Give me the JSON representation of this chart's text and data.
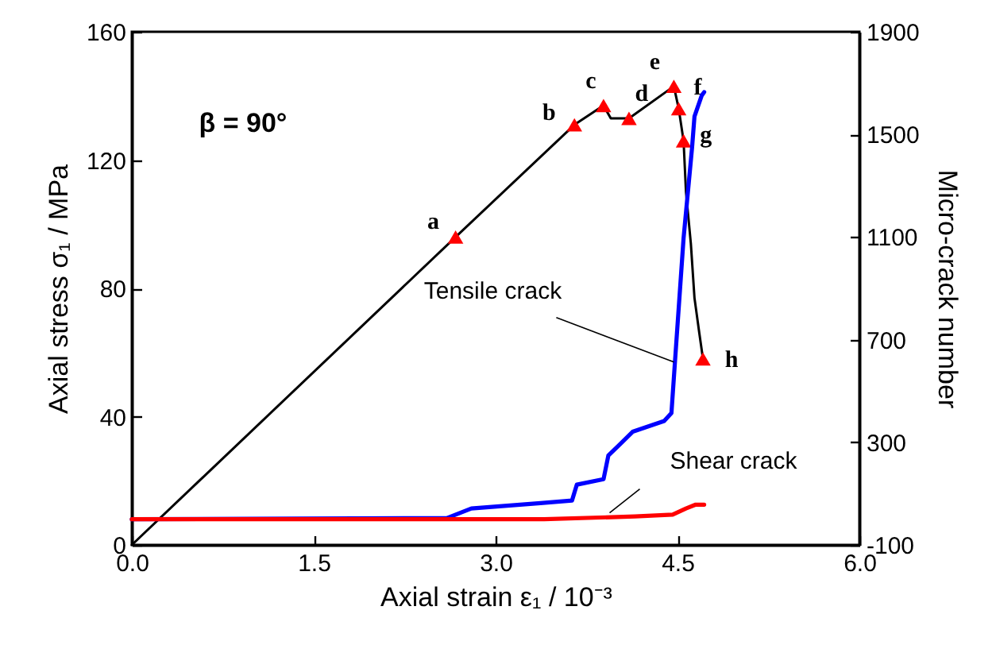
{
  "chart_data": {
    "type": "line",
    "xlabel": "Axial strain ε₁ / 10⁻³",
    "ylabel": "Axial stress σ₁ / MPa",
    "y2label": "Micro-crack number",
    "xlim": [
      0,
      6
    ],
    "xticks": [
      {
        "value": 0,
        "label": "0.0"
      },
      {
        "value": 1.5,
        "label": "1.5"
      },
      {
        "value": 3,
        "label": "3.0"
      },
      {
        "value": 4.5,
        "label": "4.5"
      },
      {
        "value": 6,
        "label": "6.0"
      }
    ],
    "ylim": [
      0,
      160
    ],
    "yticks": [
      0,
      40,
      80,
      120,
      160
    ],
    "y2lim": [
      -100,
      1900
    ],
    "y2ticks": [
      -100,
      300,
      700,
      1100,
      1500,
      1900
    ],
    "series": [
      {
        "color": "#000000",
        "axis": "y",
        "x": [
          0,
          2.67,
          3.65,
          3.89,
          3.95,
          4.02,
          4.1,
          4.47,
          4.51,
          4.55,
          4.57,
          4.61,
          4.64,
          4.68,
          4.71
        ],
        "values": [
          0,
          96,
          131,
          137,
          133,
          133,
          133,
          143,
          136,
          126,
          110,
          94,
          77,
          66,
          58
        ]
      },
      {
        "color": "#0000ff",
        "axis": "y2",
        "x": [
          0,
          2.6,
          2.8,
          3.37,
          3.63,
          3.67,
          3.89,
          3.93,
          4.02,
          4.13,
          4.39,
          4.45,
          4.48,
          4.55,
          4.62,
          4.64,
          4.7,
          4.72
        ],
        "values": [
          0,
          5,
          42,
          63,
          73,
          135,
          156,
          249,
          290,
          341,
          383,
          414,
          620,
          1095,
          1448,
          1570,
          1652,
          1665
        ]
      },
      {
        "color": "#ff0000",
        "axis": "y2",
        "x": [
          0,
          3.4,
          4.15,
          4.46,
          4.57,
          4.65,
          4.72
        ],
        "values": [
          0,
          0,
          11,
          18,
          42,
          57,
          57
        ]
      },
      {
        "type": "scatter",
        "marker": "triangle",
        "color": "#ff0000",
        "axis": "y",
        "x": [
          2.67,
          3.65,
          3.89,
          4.1,
          4.47,
          4.51,
          4.55,
          4.71
        ],
        "values": [
          96,
          131,
          137,
          133,
          143,
          136,
          126,
          58
        ]
      }
    ],
    "annotations": [
      "β = 90°",
      {
        "text": "Tensile crack",
        "x": 4.47,
        "y": 57
      },
      {
        "text": "Shear crack",
        "x": 3.94,
        "y": 10
      },
      {
        "text": "a",
        "x": 2.67,
        "y": 96
      },
      {
        "text": "b",
        "x": 3.65,
        "y": 131
      },
      {
        "text": "c",
        "x": 3.89,
        "y": 137
      },
      {
        "text": "d",
        "x": 4.1,
        "y": 133
      },
      {
        "text": "e",
        "x": 4.47,
        "y": 143
      },
      {
        "text": "f",
        "x": 4.51,
        "y": 136
      },
      {
        "text": "g",
        "x": 4.55,
        "y": 126
      },
      {
        "text": "h",
        "x": 4.71,
        "y": 58
      }
    ]
  }
}
